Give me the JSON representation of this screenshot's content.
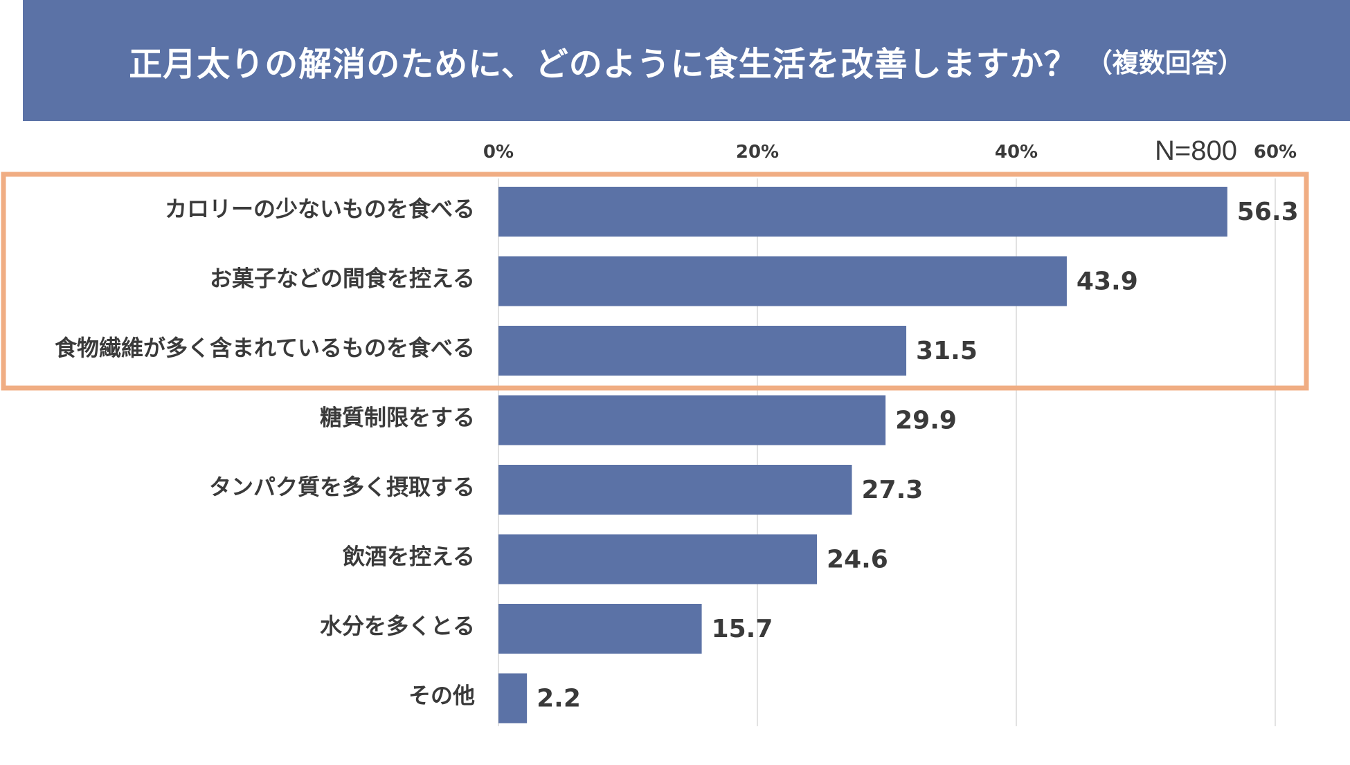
{
  "header": {
    "title": "正月太りの解消のために、どのように食生活を改善しますか？",
    "subtitle": "（複数回答）"
  },
  "sample_size": "N=800",
  "colors": {
    "bar": "#5b72a6",
    "highlight": "#f0ad83",
    "grid": "#d9d9d9",
    "text": "#3a3a3a"
  },
  "chart_data": {
    "type": "bar",
    "orientation": "horizontal",
    "title": "正月太りの解消のために、どのように食生活を改善しますか？（複数回答）",
    "xlabel": "",
    "ylabel": "",
    "xlim": [
      0,
      60
    ],
    "ticks": [
      0,
      20,
      40,
      60
    ],
    "tick_labels": [
      "0%",
      "20%",
      "40%",
      "60%"
    ],
    "categories": [
      "カロリーの少ないものを食べる",
      "お菓子などの間食を控える",
      "食物繊維が多く含まれているものを食べる",
      "糖質制限をする",
      "タンパク質を多く摂取する",
      "飲酒を控える",
      "水分を多くとる",
      "その他"
    ],
    "values": [
      56.3,
      43.9,
      31.5,
      29.9,
      27.3,
      24.6,
      15.7,
      2.2
    ],
    "value_labels": [
      "56.3",
      "43.9",
      "31.5",
      "29.9",
      "27.3",
      "24.6",
      "15.7",
      "2.2"
    ],
    "highlighted_categories": [
      0,
      1,
      2
    ]
  }
}
